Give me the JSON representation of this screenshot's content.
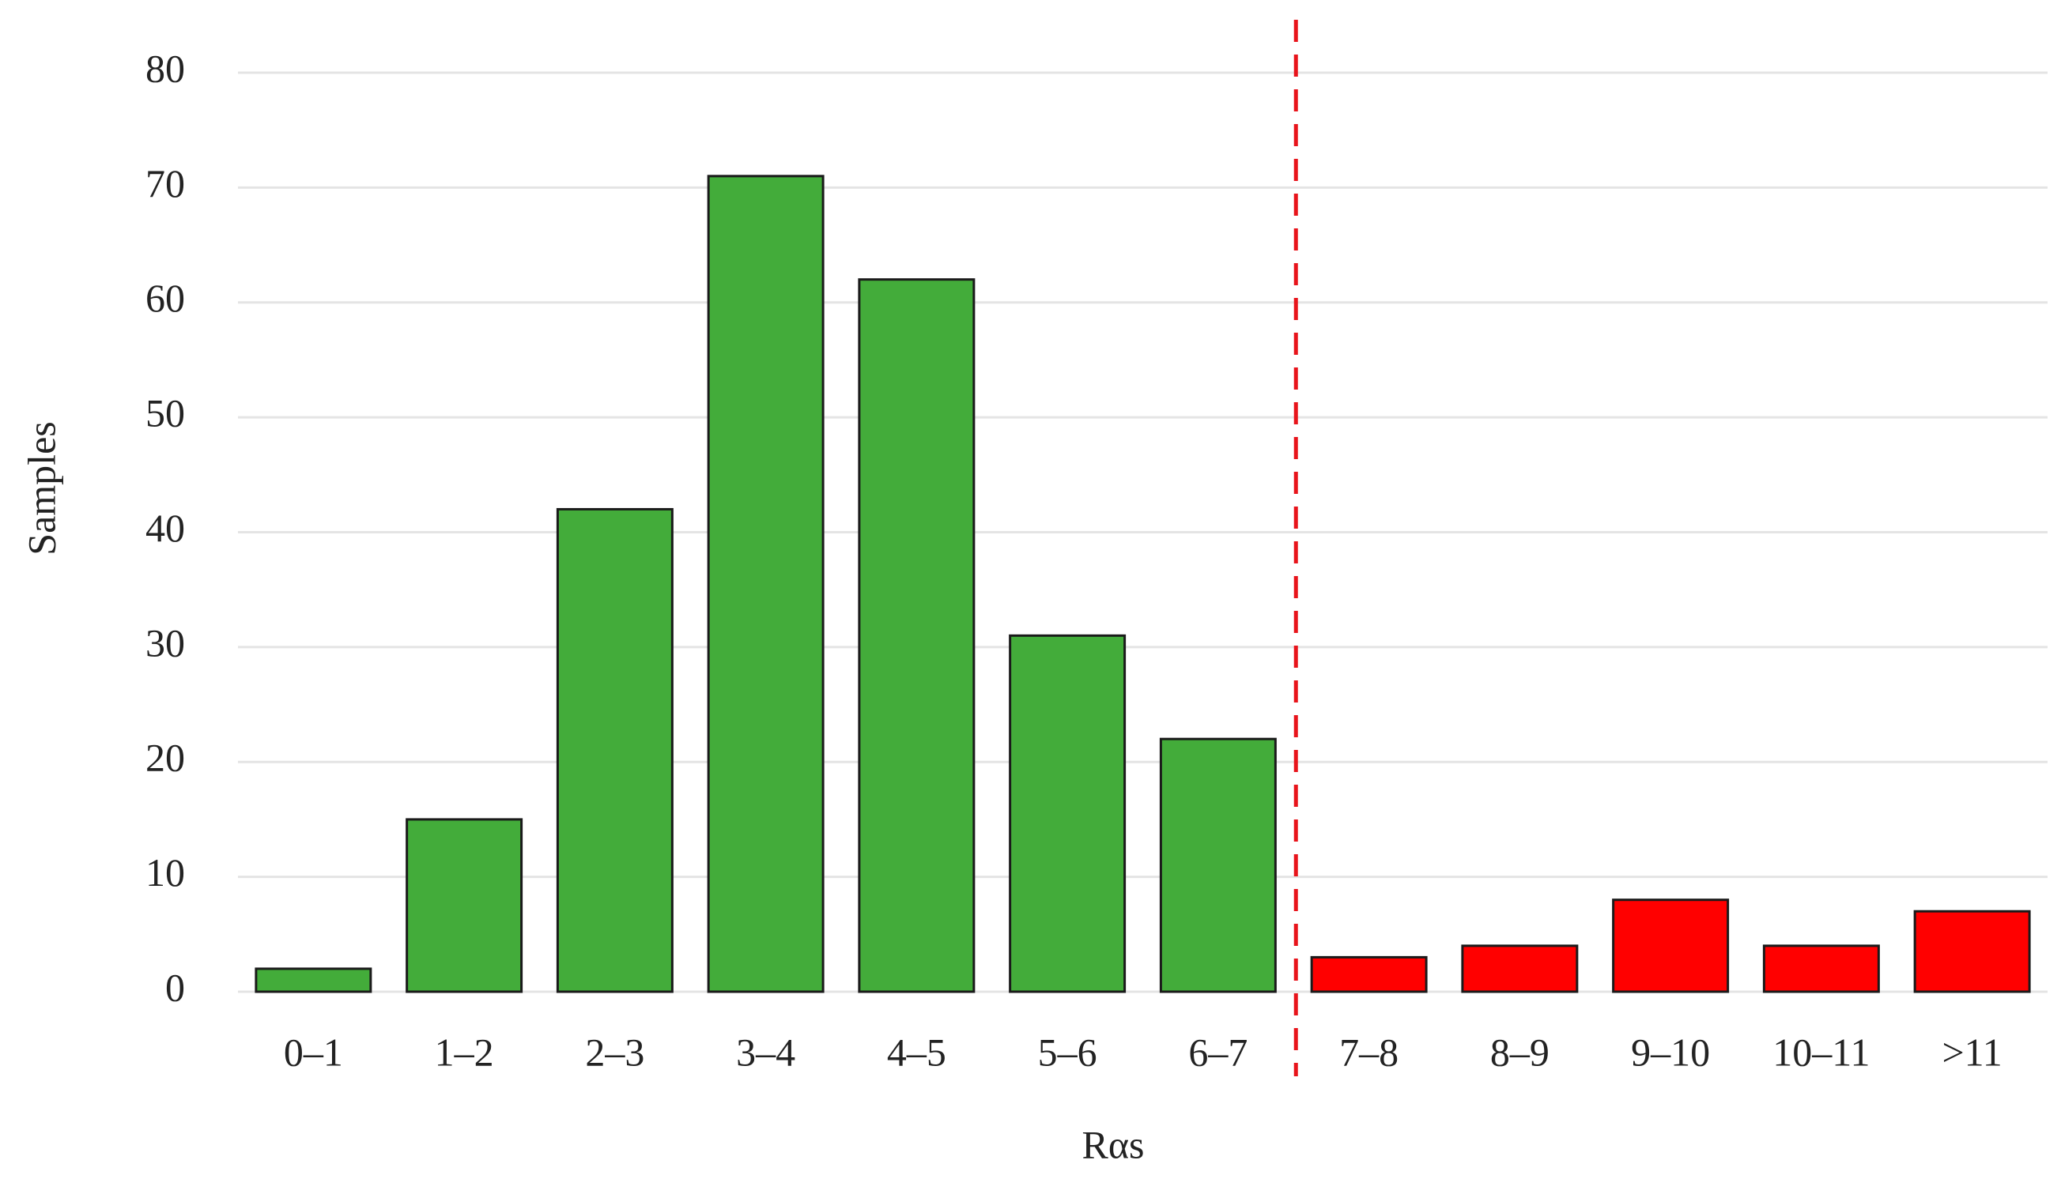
{
  "chart_data": {
    "type": "bar",
    "x_label": "Rαs",
    "y_label": "Samples",
    "categories": [
      "0–1",
      "1–2",
      "2–3",
      "3–4",
      "4–5",
      "5–6",
      "6–7",
      "7–8",
      "8–9",
      "9–10",
      "10–11",
      ">11"
    ],
    "values": [
      2,
      15,
      42,
      71,
      62,
      31,
      22,
      3,
      4,
      8,
      4,
      7
    ],
    "colors": [
      "#43ac3a",
      "#43ac3a",
      "#43ac3a",
      "#43ac3a",
      "#43ac3a",
      "#43ac3a",
      "#43ac3a",
      "#ff0000",
      "#ff0000",
      "#ff0000",
      "#ff0000",
      "#ff0000"
    ],
    "ylim": [
      0,
      80
    ],
    "yticks": [
      0,
      10,
      20,
      30,
      40,
      50,
      60,
      70,
      80
    ],
    "grid": true
  }
}
